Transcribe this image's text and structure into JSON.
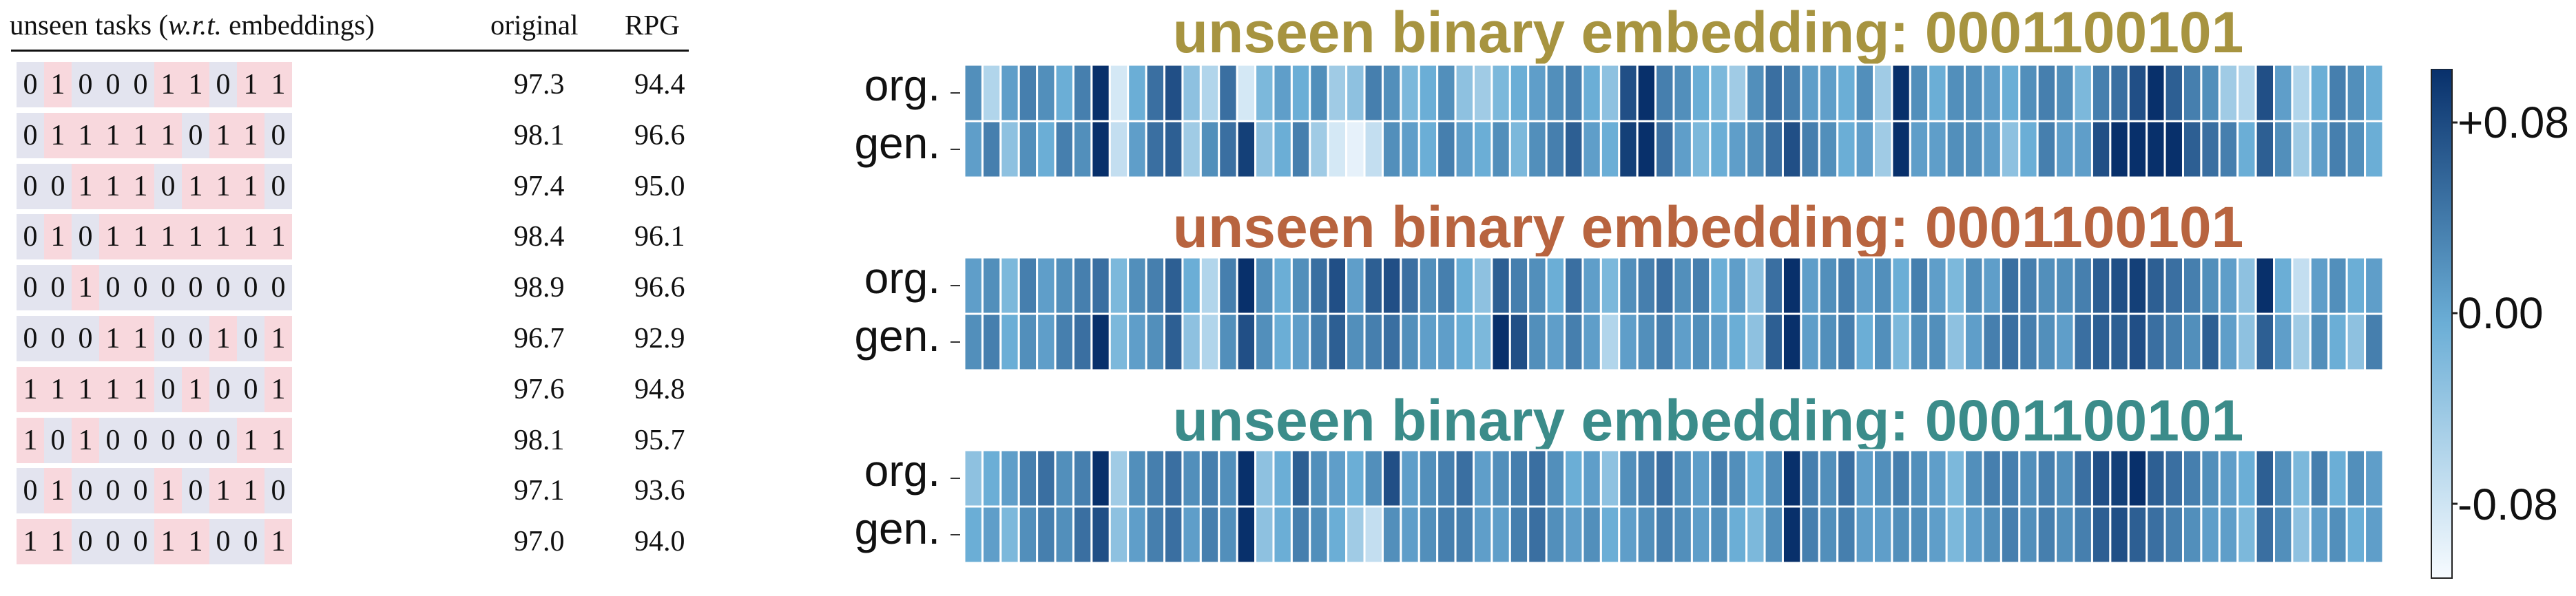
{
  "table": {
    "header": {
      "tasks_prefix": "unseen tasks (",
      "tasks_italic": "w.r.t.",
      "tasks_suffix": " embeddings)",
      "original": "original",
      "rpg": "RPG"
    },
    "rows": [
      {
        "bits": "0100011011",
        "original": "97.3",
        "rpg": "94.4"
      },
      {
        "bits": "0111110110",
        "original": "98.1",
        "rpg": "96.6"
      },
      {
        "bits": "0011101110",
        "original": "97.4",
        "rpg": "95.0"
      },
      {
        "bits": "0101111111",
        "original": "98.4",
        "rpg": "96.1"
      },
      {
        "bits": "0010000000",
        "original": "98.9",
        "rpg": "96.6"
      },
      {
        "bits": "0001100101",
        "original": "96.7",
        "rpg": "92.9"
      },
      {
        "bits": "1111101001",
        "original": "97.6",
        "rpg": "94.8"
      },
      {
        "bits": "1010000011",
        "original": "98.1",
        "rpg": "95.7"
      },
      {
        "bits": "0100010110",
        "original": "97.1",
        "rpg": "93.6"
      },
      {
        "bits": "1100011001",
        "original": "97.0",
        "rpg": "94.0"
      }
    ]
  },
  "colors": {
    "bit0": "#e3e4ef",
    "bit1": "#f8d8dd",
    "title1": "#a79440",
    "title2": "#b8643f",
    "title3": "#3b8c8a",
    "cmap_low": "#f7fbff",
    "cmap_mid": "#6baed6",
    "cmap_high": "#08306b"
  },
  "chart_data": {
    "type": "heatmap",
    "row_labels": [
      "org.",
      "gen."
    ],
    "colorbar": {
      "min": -0.08,
      "max": 0.08,
      "ticks": [
        "+0.08",
        "0.00",
        "-0.08"
      ],
      "cmap": "Blues"
    },
    "panels": [
      {
        "title": "unseen binary embedding: 0001100101",
        "org": [
          0.02,
          -0.04,
          0.01,
          0.03,
          0.02,
          0.0,
          0.03,
          0.08,
          -0.06,
          0.0,
          0.04,
          0.06,
          -0.02,
          -0.04,
          0.04,
          -0.06,
          -0.01,
          0.01,
          0.0,
          0.02,
          -0.03,
          -0.02,
          0.03,
          0.02,
          -0.01,
          0.0,
          0.02,
          -0.02,
          -0.03,
          -0.01,
          0.0,
          0.01,
          0.02,
          0.03,
          0.0,
          -0.02,
          0.06,
          0.08,
          0.03,
          0.02,
          0.0,
          -0.01,
          -0.03,
          0.02,
          0.04,
          0.03,
          0.01,
          0.01,
          0.0,
          0.02,
          -0.03,
          0.08,
          0.02,
          0.0,
          0.02,
          0.02,
          0.01,
          0.0,
          0.02,
          0.03,
          0.02,
          -0.01,
          0.03,
          0.04,
          0.06,
          0.08,
          0.05,
          0.03,
          0.02,
          -0.03,
          -0.04,
          0.06,
          0.01,
          -0.04,
          0.0,
          0.03,
          0.02,
          0.0
        ],
        "gen": [
          0.01,
          0.03,
          -0.02,
          0.02,
          0.0,
          0.03,
          0.02,
          0.09,
          -0.05,
          0.01,
          0.04,
          0.05,
          -0.03,
          0.02,
          0.04,
          0.07,
          -0.02,
          0.0,
          0.03,
          -0.03,
          -0.06,
          -0.07,
          -0.05,
          0.02,
          0.01,
          0.0,
          0.03,
          0.01,
          0.0,
          0.02,
          -0.01,
          0.02,
          0.03,
          0.05,
          0.01,
          0.0,
          0.07,
          0.08,
          0.04,
          0.01,
          -0.01,
          0.0,
          0.01,
          0.02,
          0.04,
          0.06,
          0.03,
          0.02,
          0.0,
          0.01,
          -0.03,
          0.09,
          0.01,
          0.01,
          0.02,
          0.02,
          0.01,
          -0.02,
          0.0,
          0.03,
          0.01,
          0.01,
          0.06,
          0.08,
          0.08,
          0.09,
          0.08,
          0.05,
          0.04,
          0.03,
          0.0,
          0.05,
          0.02,
          -0.03,
          0.01,
          0.03,
          0.02,
          0.0
        ]
      },
      {
        "title": "unseen binary embedding: 0001100101",
        "org": [
          0.01,
          0.02,
          -0.01,
          0.03,
          0.01,
          0.02,
          0.03,
          0.04,
          -0.01,
          0.02,
          0.03,
          0.05,
          0.0,
          -0.04,
          0.03,
          0.08,
          0.02,
          0.0,
          0.02,
          0.04,
          0.06,
          0.01,
          0.05,
          0.06,
          0.04,
          0.02,
          0.03,
          0.0,
          -0.02,
          0.05,
          0.03,
          0.02,
          0.0,
          0.04,
          0.01,
          -0.01,
          0.02,
          0.03,
          0.04,
          0.02,
          0.03,
          0.0,
          0.01,
          -0.02,
          0.04,
          0.08,
          0.01,
          0.02,
          0.03,
          0.01,
          0.02,
          0.0,
          0.03,
          0.01,
          -0.01,
          0.02,
          0.01,
          0.04,
          0.03,
          0.02,
          0.02,
          0.03,
          0.05,
          0.06,
          0.07,
          0.05,
          0.04,
          0.03,
          0.02,
          0.01,
          -0.02,
          0.08,
          0.0,
          -0.05,
          0.01,
          0.02,
          0.0,
          0.01
        ],
        "gen": [
          0.02,
          0.03,
          0.0,
          0.02,
          0.01,
          0.03,
          0.04,
          0.08,
          -0.01,
          0.01,
          0.02,
          0.05,
          -0.02,
          -0.04,
          0.02,
          0.06,
          0.02,
          0.0,
          0.01,
          0.03,
          0.05,
          0.02,
          0.03,
          0.04,
          0.02,
          0.01,
          0.01,
          0.0,
          -0.01,
          0.08,
          0.06,
          0.02,
          0.01,
          0.03,
          0.01,
          -0.04,
          0.01,
          0.02,
          0.03,
          0.01,
          0.02,
          0.01,
          0.0,
          -0.02,
          0.05,
          0.08,
          0.01,
          0.02,
          0.03,
          0.0,
          0.02,
          -0.01,
          0.02,
          0.02,
          -0.02,
          0.01,
          0.03,
          0.04,
          0.03,
          0.02,
          0.01,
          0.04,
          0.05,
          0.05,
          0.06,
          0.04,
          0.03,
          0.02,
          0.05,
          0.01,
          -0.02,
          0.05,
          0.01,
          -0.03,
          0.02,
          0.0,
          -0.02,
          0.03
        ]
      },
      {
        "title": "unseen binary embedding: 0001100101",
        "org": [
          -0.02,
          0.0,
          0.01,
          0.03,
          0.04,
          0.02,
          0.03,
          0.08,
          -0.03,
          0.02,
          0.03,
          0.04,
          0.02,
          0.03,
          0.02,
          0.08,
          -0.02,
          0.0,
          0.05,
          0.02,
          0.01,
          0.0,
          0.02,
          0.06,
          0.01,
          0.02,
          0.03,
          0.04,
          0.01,
          0.02,
          0.03,
          0.04,
          0.02,
          0.0,
          0.01,
          -0.02,
          0.02,
          0.03,
          0.04,
          0.02,
          0.01,
          0.03,
          0.02,
          0.0,
          0.02,
          0.08,
          0.03,
          0.02,
          0.04,
          0.01,
          0.02,
          0.03,
          0.02,
          0.01,
          -0.01,
          0.02,
          0.03,
          0.03,
          0.02,
          0.03,
          0.02,
          0.04,
          0.06,
          0.07,
          0.08,
          0.05,
          0.04,
          0.03,
          0.02,
          0.01,
          0.0,
          0.05,
          0.02,
          -0.01,
          0.03,
          0.0,
          0.02,
          0.01
        ],
        "gen": [
          0.0,
          0.01,
          -0.01,
          0.02,
          0.03,
          0.02,
          0.04,
          0.06,
          -0.02,
          0.01,
          0.03,
          0.04,
          0.01,
          0.03,
          0.02,
          0.08,
          -0.02,
          0.0,
          0.03,
          0.02,
          0.0,
          -0.03,
          -0.05,
          0.02,
          0.01,
          0.02,
          0.03,
          0.03,
          0.01,
          0.01,
          0.03,
          0.04,
          0.02,
          0.01,
          0.02,
          0.0,
          0.01,
          0.02,
          0.03,
          0.02,
          0.01,
          0.02,
          0.0,
          -0.01,
          0.02,
          0.08,
          0.03,
          0.02,
          0.03,
          0.01,
          0.01,
          0.02,
          0.02,
          0.01,
          -0.01,
          0.01,
          0.02,
          0.03,
          0.02,
          0.03,
          0.02,
          0.03,
          0.05,
          0.06,
          0.05,
          0.04,
          0.03,
          0.02,
          0.01,
          0.01,
          -0.01,
          0.04,
          0.02,
          -0.02,
          0.01,
          0.02,
          0.0,
          0.01
        ]
      }
    ]
  }
}
